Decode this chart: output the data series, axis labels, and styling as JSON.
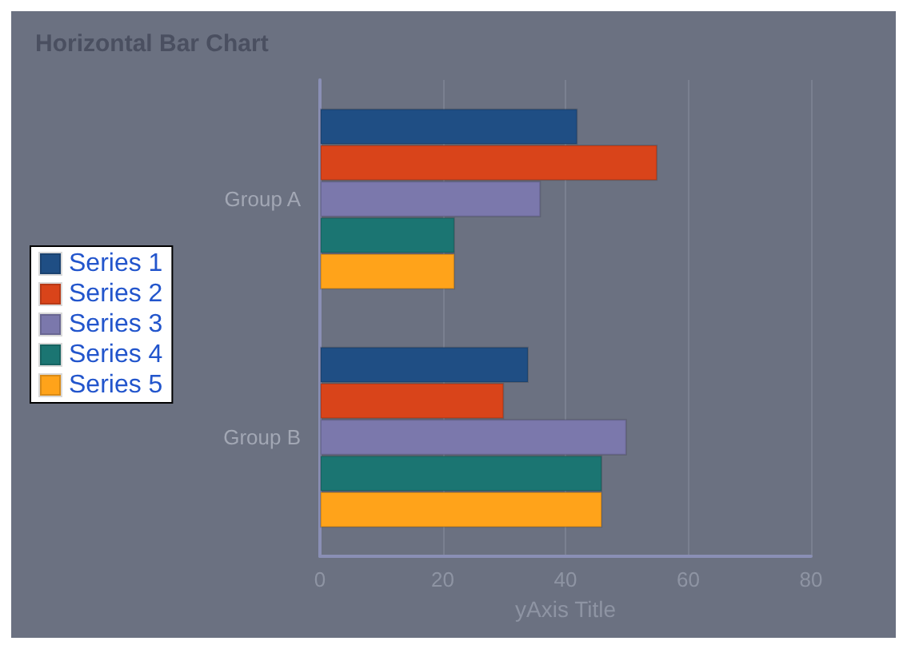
{
  "chart_data": {
    "type": "bar",
    "orientation": "horizontal",
    "title": "Horizontal Bar Chart",
    "xlabel": "yAxis Title",
    "categories": [
      "Group A",
      "Group B"
    ],
    "series": [
      {
        "name": "Series 1",
        "color": "#1f4e84",
        "values": [
          42,
          34
        ]
      },
      {
        "name": "Series 2",
        "color": "#d9441a",
        "values": [
          55,
          30
        ]
      },
      {
        "name": "Series 3",
        "color": "#7b78ac",
        "values": [
          36,
          50
        ]
      },
      {
        "name": "Series 4",
        "color": "#1b7572",
        "values": [
          22,
          46
        ]
      },
      {
        "name": "Series 5",
        "color": "#ffa31a",
        "values": [
          22,
          46
        ]
      }
    ],
    "xlim": [
      0,
      80
    ],
    "xticks": [
      0,
      20,
      40,
      60,
      80
    ],
    "grid": "x",
    "legend": "left"
  }
}
